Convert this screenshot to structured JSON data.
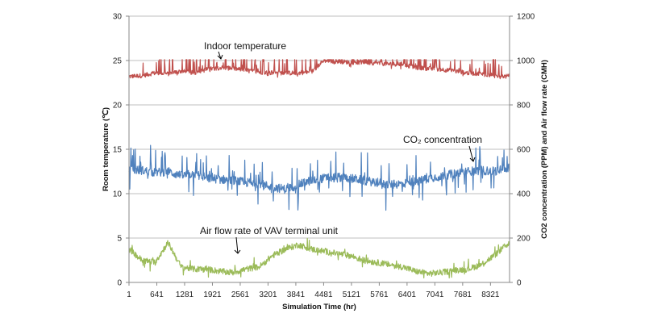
{
  "chart_data": {
    "type": "line",
    "xlabel": "Simulation Time (hr)",
    "ylabel_left": "Room temperature (℃)",
    "ylabel_right": "CO2 concentration (PPM) and Air flow rate (CMH)",
    "xlim": [
      1,
      8760
    ],
    "x_ticks": [
      1,
      641,
      1281,
      1921,
      2561,
      3201,
      3841,
      4481,
      5121,
      5761,
      6401,
      7041,
      7681,
      8321
    ],
    "y_left_lim": [
      0,
      30
    ],
    "y_left_ticks": [
      0,
      5,
      10,
      15,
      20,
      25,
      30
    ],
    "y_right_lim": [
      0,
      1200
    ],
    "y_right_ticks": [
      0,
      200,
      400,
      600,
      800,
      1000,
      1200
    ],
    "grid": "horizontal",
    "legend": "none",
    "series": [
      {
        "name": "Indoor temperature",
        "axis": "left",
        "color": "#C0504D",
        "x": [
          1,
          300,
          600,
          900,
          1200,
          1500,
          1800,
          2100,
          2400,
          2700,
          3000,
          3300,
          3600,
          3900,
          4200,
          4481,
          4800,
          5100,
          5400,
          5700,
          6000,
          6300,
          6600,
          6900,
          7200,
          7500,
          7800,
          8100,
          8400,
          8760
        ],
        "y": [
          23.2,
          23.3,
          23.6,
          23.5,
          23.8,
          23.6,
          24.0,
          24.2,
          24.1,
          23.9,
          23.7,
          23.6,
          23.6,
          23.6,
          23.7,
          25.0,
          24.9,
          24.8,
          24.8,
          24.7,
          24.6,
          24.6,
          24.2,
          24.1,
          24.0,
          23.8,
          23.6,
          23.5,
          23.3,
          23.2
        ]
      },
      {
        "name": "CO2 concentration",
        "axis": "right",
        "color": "#4F81BD",
        "x": [
          1,
          300,
          600,
          900,
          1200,
          1500,
          1800,
          2100,
          2400,
          2700,
          3000,
          3300,
          3600,
          3900,
          4200,
          4500,
          4800,
          5100,
          5400,
          5700,
          6000,
          6300,
          6600,
          6900,
          7200,
          7500,
          7800,
          8100,
          8400,
          8760
        ],
        "y": [
          510,
          505,
          495,
          500,
          480,
          490,
          470,
          465,
          460,
          450,
          445,
          430,
          420,
          440,
          460,
          470,
          475,
          470,
          460,
          450,
          440,
          445,
          455,
          470,
          480,
          490,
          500,
          505,
          500,
          520
        ]
      },
      {
        "name": "Air flow rate of VAV terminal unit",
        "axis": "right",
        "color": "#9BBB59",
        "x": [
          1,
          300,
          600,
          900,
          1200,
          1500,
          1800,
          2100,
          2400,
          2700,
          3000,
          3300,
          3600,
          3900,
          4200,
          4500,
          4800,
          5100,
          5400,
          5700,
          6000,
          6300,
          6600,
          6900,
          7200,
          7500,
          7800,
          8100,
          8400,
          8760
        ],
        "y": [
          150,
          100,
          90,
          180,
          70,
          60,
          60,
          50,
          45,
          60,
          70,
          120,
          150,
          170,
          150,
          140,
          130,
          120,
          100,
          90,
          80,
          70,
          50,
          40,
          45,
          55,
          60,
          80,
          120,
          180
        ]
      }
    ],
    "annotations": [
      {
        "text": "Indoor temperature",
        "series": 0
      },
      {
        "text": "CO₂ concentration",
        "series": 1
      },
      {
        "text": "Air flow rate of VAV terminal unit",
        "series": 2
      }
    ]
  }
}
